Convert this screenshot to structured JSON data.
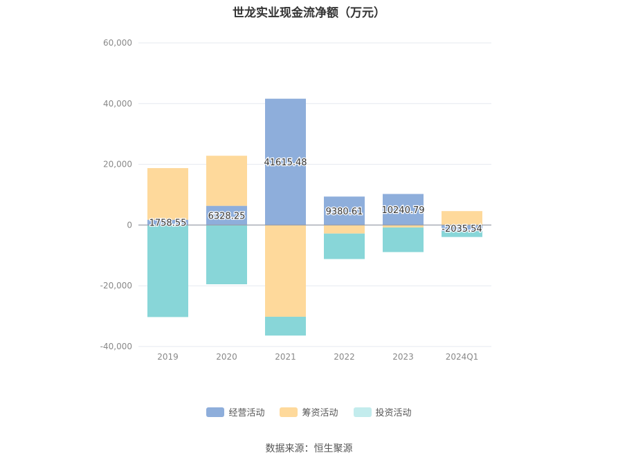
{
  "chart_data": {
    "type": "bar",
    "stacked": true,
    "title": "世龙实业现金流净额（万元）",
    "categories": [
      "2019",
      "2020",
      "2021",
      "2022",
      "2023",
      "2024Q1"
    ],
    "series": [
      {
        "name": "经营活动",
        "color": "#8eaedb",
        "values": [
          1758.55,
          6328.25,
          41615.48,
          9380.61,
          10240.79,
          -2035.54
        ]
      },
      {
        "name": "筹资活动",
        "color": "#fed99b",
        "values": [
          17000,
          16500,
          -30200,
          -2800,
          -800,
          4600
        ]
      },
      {
        "name": "投资活动",
        "color": "#88d6d8",
        "values": [
          -30300,
          -19500,
          -6200,
          -8400,
          -8100,
          -1900
        ]
      }
    ],
    "data_labels": [
      "1758.55",
      "6328.25",
      "41615.48",
      "9380.61",
      "10240.79",
      "-2035.54"
    ],
    "yticks": [
      "60,000",
      "40,000",
      "20,000",
      "0",
      "-20,000",
      "-40,000"
    ],
    "ylim": [
      -40000,
      60000
    ],
    "grid": true,
    "legend_position": "bottom"
  },
  "source": "数据来源：恒生聚源"
}
